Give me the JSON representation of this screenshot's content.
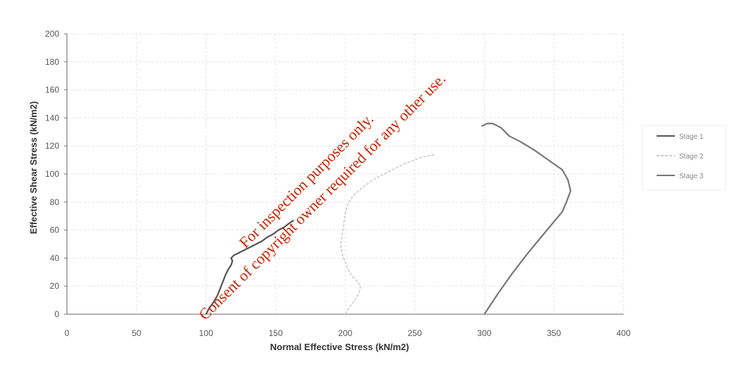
{
  "chart_data": {
    "type": "line",
    "xlabel": "Normal Effective Stress (kN/m2)",
    "ylabel": "Effective Shear Stress (kN/m2)",
    "xlim": [
      0,
      400
    ],
    "ylim": [
      0,
      200
    ],
    "xticks": [
      "0",
      "50",
      "100",
      "150",
      "200",
      "250",
      "300",
      "350",
      "400"
    ],
    "yticks": [
      "0",
      "20",
      "40",
      "60",
      "80",
      "100",
      "120",
      "140",
      "160",
      "180",
      "200"
    ],
    "grid": true,
    "legend_position": "right",
    "series": [
      {
        "name": "Stage 1",
        "color": "#555555",
        "points": [
          [
            100,
            0
          ],
          [
            102,
            4
          ],
          [
            105,
            8
          ],
          [
            108,
            13
          ],
          [
            110,
            18
          ],
          [
            112,
            23
          ],
          [
            114,
            28
          ],
          [
            116,
            32
          ],
          [
            118,
            35
          ],
          [
            119,
            38
          ],
          [
            118,
            40
          ],
          [
            120,
            42
          ],
          [
            124,
            44
          ],
          [
            128,
            46
          ],
          [
            132,
            48
          ],
          [
            136,
            50
          ],
          [
            140,
            52
          ],
          [
            144,
            55
          ],
          [
            148,
            57
          ],
          [
            152,
            60
          ],
          [
            156,
            62
          ],
          [
            160,
            65
          ],
          [
            163,
            67
          ]
        ]
      },
      {
        "name": "Stage 2",
        "color": "#cccccc",
        "points": [
          [
            200,
            0
          ],
          [
            203,
            5
          ],
          [
            207,
            10
          ],
          [
            210,
            15
          ],
          [
            211,
            20
          ],
          [
            209,
            23
          ],
          [
            205,
            27
          ],
          [
            202,
            32
          ],
          [
            200,
            37
          ],
          [
            198,
            42
          ],
          [
            197,
            47
          ],
          [
            197,
            52
          ],
          [
            198,
            58
          ],
          [
            199,
            65
          ],
          [
            200,
            72
          ],
          [
            202,
            79
          ],
          [
            206,
            85
          ],
          [
            212,
            90
          ],
          [
            220,
            96
          ],
          [
            230,
            101
          ],
          [
            242,
            107
          ],
          [
            255,
            112
          ],
          [
            265,
            114
          ]
        ]
      },
      {
        "name": "Stage 3",
        "color": "#777777",
        "points": [
          [
            300,
            0
          ],
          [
            310,
            15
          ],
          [
            320,
            29
          ],
          [
            330,
            42
          ],
          [
            340,
            54
          ],
          [
            350,
            66
          ],
          [
            356,
            73
          ],
          [
            359,
            80
          ],
          [
            362,
            88
          ],
          [
            360,
            96
          ],
          [
            356,
            103
          ],
          [
            346,
            110
          ],
          [
            336,
            117
          ],
          [
            326,
            123
          ],
          [
            318,
            127
          ],
          [
            312,
            133
          ],
          [
            308,
            135
          ],
          [
            306,
            136
          ],
          [
            302,
            136
          ],
          [
            298,
            134
          ]
        ]
      }
    ]
  },
  "watermark": {
    "line1": "For inspection purposes only.",
    "line2": "Consent of copyright owner required for any other use."
  }
}
